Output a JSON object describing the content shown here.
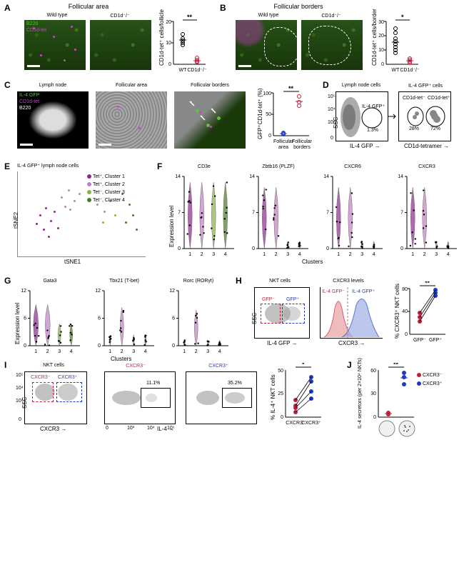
{
  "panelA": {
    "label": "A",
    "title": "Follicular area",
    "cond1": "Wild type",
    "cond2": "CD1d⁻/⁻",
    "legend_green": "B220",
    "legend_magenta": "CD1d-tet",
    "ylabel": "CD1d-tet⁺ cells/follicle",
    "x1": "WT",
    "x2": "CD1d⁻/⁻",
    "sig": "**",
    "wt_points": [
      9,
      11,
      14,
      12,
      10
    ],
    "ko_points": [
      1,
      2,
      1,
      3,
      1
    ],
    "ylim": [
      0,
      20
    ],
    "wt_mean": 11.2,
    "ko_mean": 1.6,
    "colors": {
      "wt": "#000000",
      "ko": "#c41e3a"
    }
  },
  "panelB": {
    "label": "B",
    "title": "Follicular borders",
    "cond1": "Wild type",
    "cond2": "CD1d⁻/⁻",
    "ylabel": "CD1d-tet⁺ cells/border",
    "x1": "WT",
    "x2": "CD1d⁻/⁻",
    "sig": "*",
    "wt_points": [
      8,
      12,
      18,
      25,
      22,
      16,
      10,
      14
    ],
    "ko_points": [
      2,
      1,
      3,
      1,
      4
    ],
    "ylim": [
      0,
      30
    ],
    "wt_mean": 15.6,
    "ko_mean": 2.2
  },
  "panelC": {
    "label": "C",
    "img1_title": "Lymph node",
    "img2_title": "Follicular area",
    "img3_title": "Follicular borders",
    "legend_green": "IL-4 GFP",
    "legend_magenta": "CD1d-tet",
    "legend_white": "B220",
    "ylabel": "GFP⁺CD1d-tet⁺ (%)",
    "x1": "Follicular area",
    "x2": "Follicular borders",
    "sig": "**",
    "area_points": [
      3,
      5,
      4
    ],
    "border_points": [
      78,
      92,
      70
    ],
    "ylim": [
      0,
      100
    ],
    "colors": {
      "area": "#1e3ac4",
      "border": "#c41e3a"
    }
  },
  "panelD": {
    "label": "D",
    "plot1_title": "Lymph node cells",
    "plot2_title": "IL-4 GFP⁺ cells",
    "gate1_label": "IL-4 GFP⁺",
    "gate1_pct": "1.3%",
    "gate2a_label": "CD1d-tet⁻",
    "gate2a_pct": "28%",
    "gate2b_label": "CD1d-tet⁺",
    "gate2b_pct": "72%",
    "x1": "IL-4 GFP",
    "x2": "CD1d-tetramer",
    "y": "SSC"
  },
  "panelE": {
    "label": "E",
    "title": "IL-4 GFP⁺ lymph node cells",
    "xlabel": "tSNE1",
    "ylabel": "tSNE2",
    "legend": {
      "c1": "Tet⁺, Cluster 1",
      "c2": "Tet⁺, Cluster 2",
      "c3": "Tet⁻, Cluster 3",
      "c4": "Tet⁻, Cluster 4"
    },
    "colors": {
      "c1": "#8b2a8b",
      "c2": "#c080c0",
      "c3": "#8ab04a",
      "c4": "#4a7b2a"
    }
  },
  "panelF": {
    "label": "F",
    "genes": [
      "CD3e",
      "Zbtb16 (PLZF)",
      "CXCR6",
      "CXCR3"
    ],
    "ylabel": "Expression level",
    "xlabel": "Clusters",
    "clusters": [
      "1",
      "2",
      "3",
      "4"
    ],
    "ylim": [
      0,
      14
    ]
  },
  "panelG": {
    "label": "G",
    "genes": [
      "Gata3",
      "Tbx21 (T-bet)",
      "Rorc (RORγt)"
    ],
    "ylabel": "Expression level",
    "xlabel": "Clusters",
    "clusters": [
      "1",
      "2",
      "3",
      "4"
    ],
    "ylim": [
      0,
      12
    ]
  },
  "panelH": {
    "label": "H",
    "plot1_title": "NKT cells",
    "plot2_title": "CXCR3 levels",
    "gfp_neg": "GFP⁻",
    "gfp_pos": "GFP⁺",
    "hist_neg": "IL-4 GFP⁻",
    "hist_pos": "IL-4 GFP⁺",
    "x1": "IL-4 GFP",
    "x3": "CXCR3",
    "y": "SSC",
    "ylabel": "% CXCR3⁺ NKT cells",
    "sig": "**",
    "neg_vals": [
      22,
      38,
      30
    ],
    "pos_vals": [
      68,
      78,
      72
    ],
    "ylim": [
      0,
      80
    ],
    "xtick1": "GFP⁻",
    "xtick2": "GFP⁺",
    "colors": {
      "neg": "#c41e3a",
      "pos": "#1e3ac4"
    }
  },
  "panelI": {
    "label": "I",
    "plot1_title": "NKT cells",
    "plot2_title": "CXCR3⁻",
    "plot3_title": "CXCR3⁺",
    "g_neg_label": "CXCR3⁻",
    "g_pos_label": "CXCR3⁺",
    "pct_neg": "11.1%",
    "pct_pos": "35.2%",
    "x1": "CXCR3",
    "x2": "IL-4",
    "y": "SSC",
    "ylabel": "% IL-4⁺ NKT cells",
    "sig": "*",
    "neg_vals": [
      5,
      10,
      12,
      18
    ],
    "pos_vals": [
      20,
      28,
      38,
      42
    ],
    "xtick1": "CXCR3⁻",
    "xtick2": "CXCR3⁺",
    "ylim": [
      0,
      50
    ]
  },
  "panelJ": {
    "label": "J",
    "ylabel": "IL-4 secretors (per 2×10⁴ NKTs)",
    "sig": "**",
    "neg_vals": [
      3,
      5,
      4
    ],
    "pos_vals": [
      42,
      58,
      52
    ],
    "ylim": [
      0,
      60
    ],
    "legend_neg": "CXCR3⁻",
    "legend_pos": "CXCR3⁺",
    "colors": {
      "neg": "#c41e3a",
      "pos": "#1e3ac4"
    }
  },
  "facs_ticks": [
    "0",
    "10³",
    "10⁴",
    "10⁵"
  ]
}
